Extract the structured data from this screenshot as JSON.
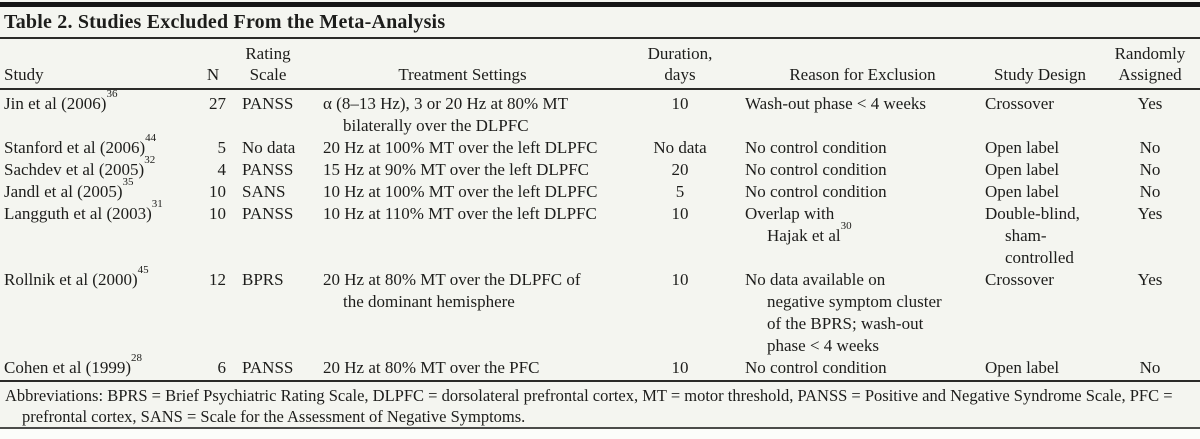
{
  "title": "Table 2. Studies Excluded From the Meta-Analysis",
  "footnote": "Abbreviations: BPRS = Brief Psychiatric Rating Scale, DLPFC = dorsolateral prefrontal cortex, MT = motor threshold, PANSS = Positive and Negative Syndrome Scale, PFC = prefrontal cortex, SANS = Scale for the Assessment of Negative Symptoms.",
  "colors": {
    "text": "#1d1d1b",
    "background": "#f4f5f0",
    "rule": "#2b2b29",
    "top_bar": "#151515"
  },
  "chart_data": {
    "type": "table",
    "title": "Table 2. Studies Excluded From the Meta-Analysis",
    "columns": [
      {
        "key": "study",
        "lines": [
          "Study"
        ]
      },
      {
        "key": "n",
        "lines": [
          "N"
        ]
      },
      {
        "key": "scale",
        "lines": [
          "Rating",
          "Scale"
        ]
      },
      {
        "key": "treat",
        "lines": [
          "Treatment Settings"
        ]
      },
      {
        "key": "dur",
        "lines": [
          "Duration,",
          "days"
        ]
      },
      {
        "key": "reason",
        "lines": [
          "Reason for Exclusion"
        ]
      },
      {
        "key": "design",
        "lines": [
          "Study Design"
        ]
      },
      {
        "key": "rand",
        "lines": [
          "Randomly",
          "Assigned"
        ]
      }
    ],
    "rows": [
      {
        "study": {
          "t": "Jin et al (2006)",
          "sup": "36"
        },
        "n": "27",
        "scale": "PANSS",
        "treat": [
          {
            "t": "α (8–13 Hz), 3 or 20 Hz at 80% MT"
          },
          {
            "t": "bilaterally over the DLPFC",
            "wrap": true
          }
        ],
        "dur": "10",
        "reason": [
          {
            "t": "Wash-out phase < 4 weeks"
          }
        ],
        "design": [
          {
            "t": "Crossover"
          }
        ],
        "rand": "Yes"
      },
      {
        "study": {
          "t": "Stanford et al (2006)",
          "sup": "44"
        },
        "n": "5",
        "scale": "No data",
        "treat": [
          {
            "t": "20 Hz at 100% MT over the left DLPFC"
          }
        ],
        "dur": "No data",
        "reason": [
          {
            "t": "No control condition"
          }
        ],
        "design": [
          {
            "t": "Open label"
          }
        ],
        "rand": "No"
      },
      {
        "study": {
          "t": "Sachdev et al (2005)",
          "sup": "32"
        },
        "n": "4",
        "scale": "PANSS",
        "treat": [
          {
            "t": "15 Hz at 90% MT over the left DLPFC"
          }
        ],
        "dur": "20",
        "reason": [
          {
            "t": "No control condition"
          }
        ],
        "design": [
          {
            "t": "Open label"
          }
        ],
        "rand": "No"
      },
      {
        "study": {
          "t": "Jandl et al (2005)",
          "sup": "35"
        },
        "n": "10",
        "scale": "SANS",
        "treat": [
          {
            "t": "10 Hz at 100% MT over the left DLPFC"
          }
        ],
        "dur": "5",
        "reason": [
          {
            "t": "No control condition"
          }
        ],
        "design": [
          {
            "t": "Open label"
          }
        ],
        "rand": "No"
      },
      {
        "study": {
          "t": "Langguth et al (2003)",
          "sup": "31"
        },
        "n": "10",
        "scale": "PANSS",
        "treat": [
          {
            "t": "10 Hz at 110% MT over the left DLPFC"
          }
        ],
        "dur": "10",
        "reason": [
          {
            "t": "Overlap with"
          },
          {
            "t": "Hajak et al",
            "sup": "30",
            "wrap": true
          }
        ],
        "design": [
          {
            "t": "Double-blind,"
          },
          {
            "t": "sham-",
            "wrap": true
          },
          {
            "t": "controlled",
            "wrap": true
          }
        ],
        "rand": "Yes"
      },
      {
        "study": {
          "t": "Rollnik et al (2000)",
          "sup": "45"
        },
        "n": "12",
        "scale": "BPRS",
        "treat": [
          {
            "t": "20 Hz at 80% MT over the DLPFC of"
          },
          {
            "t": "the dominant hemisphere",
            "wrap": true
          }
        ],
        "dur": "10",
        "reason": [
          {
            "t": "No data available on"
          },
          {
            "t": "negative symptom cluster",
            "wrap": true
          },
          {
            "t": "of the BPRS; wash-out",
            "wrap": true
          },
          {
            "t": "phase < 4 weeks",
            "wrap": true
          }
        ],
        "design": [
          {
            "t": "Crossover"
          }
        ],
        "rand": "Yes"
      },
      {
        "study": {
          "t": "Cohen et al (1999)",
          "sup": "28"
        },
        "n": "6",
        "scale": "PANSS",
        "treat": [
          {
            "t": "20 Hz at 80% MT over the PFC"
          }
        ],
        "dur": "10",
        "reason": [
          {
            "t": "No control condition"
          }
        ],
        "design": [
          {
            "t": "Open label"
          }
        ],
        "rand": "No"
      }
    ]
  }
}
